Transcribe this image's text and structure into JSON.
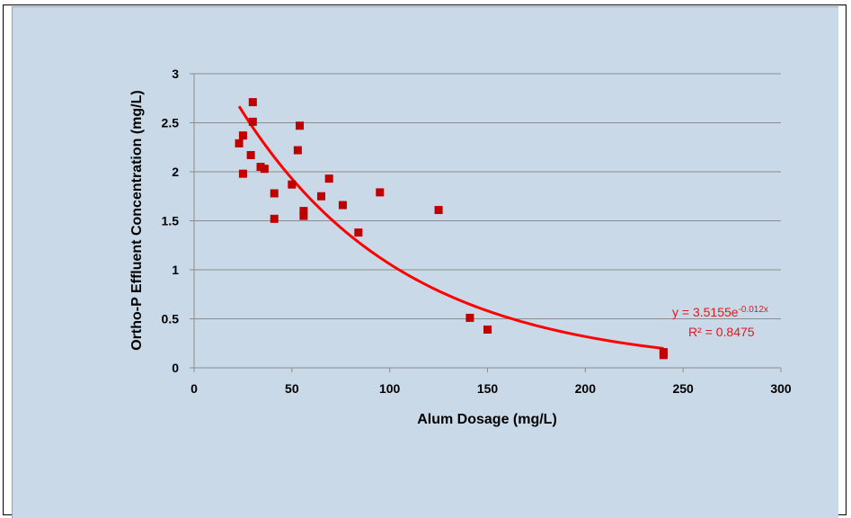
{
  "chart_data": {
    "type": "scatter",
    "xlabel": "Alum Dosage (mg/L)",
    "ylabel": "Ortho-P Effluent Concentration (mg/L)",
    "xlim": [
      0,
      300
    ],
    "ylim": [
      0,
      3
    ],
    "x_ticks": [
      "0",
      "50",
      "100",
      "150",
      "200",
      "250",
      "300"
    ],
    "y_ticks": [
      "0",
      "0.5",
      "1",
      "1.5",
      "2",
      "2.5",
      "3"
    ],
    "grid": "horizontal",
    "marker_color": "#c00000",
    "trendline_color": "#ff0000",
    "points": [
      {
        "x": 23,
        "y": 2.29
      },
      {
        "x": 25,
        "y": 2.37
      },
      {
        "x": 25,
        "y": 1.98
      },
      {
        "x": 29,
        "y": 2.17
      },
      {
        "x": 30,
        "y": 2.71
      },
      {
        "x": 30,
        "y": 2.51
      },
      {
        "x": 34,
        "y": 2.05
      },
      {
        "x": 36,
        "y": 2.03
      },
      {
        "x": 41,
        "y": 1.78
      },
      {
        "x": 41,
        "y": 1.52
      },
      {
        "x": 50,
        "y": 1.87
      },
      {
        "x": 53,
        "y": 2.22
      },
      {
        "x": 54,
        "y": 2.47
      },
      {
        "x": 56,
        "y": 1.6
      },
      {
        "x": 56,
        "y": 1.55
      },
      {
        "x": 65,
        "y": 1.75
      },
      {
        "x": 69,
        "y": 1.93
      },
      {
        "x": 76,
        "y": 1.66
      },
      {
        "x": 84,
        "y": 1.38
      },
      {
        "x": 95,
        "y": 1.79
      },
      {
        "x": 125,
        "y": 1.61
      },
      {
        "x": 141,
        "y": 0.51
      },
      {
        "x": 150,
        "y": 0.39
      },
      {
        "x": 240,
        "y": 0.16
      },
      {
        "x": 240,
        "y": 0.13
      }
    ],
    "trendline": {
      "type": "exponential",
      "a": 3.5155,
      "b": -0.012,
      "x_range": [
        23,
        240
      ],
      "equation_prefix": "y = 3.5155e",
      "equation_exponent": "-0.012x",
      "r2_label": "R² = 0.8475"
    }
  }
}
